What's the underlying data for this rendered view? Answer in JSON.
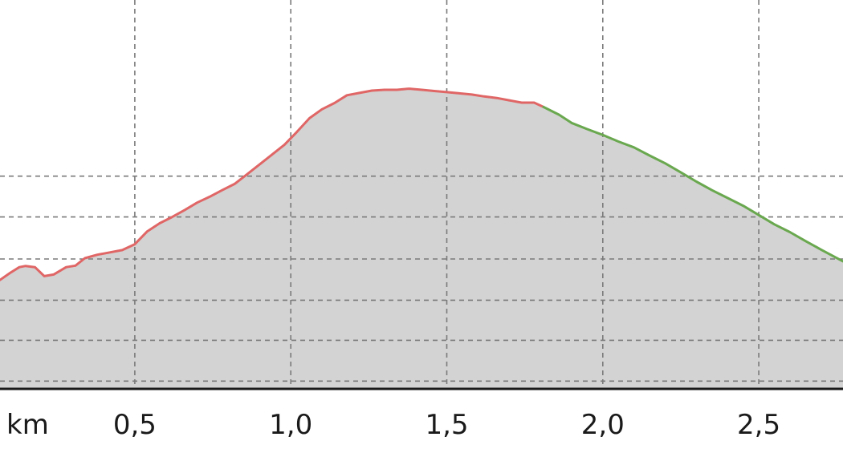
{
  "chart_data": {
    "type": "area",
    "xlabel": "km",
    "x_ticks": [
      {
        "value": 0.5,
        "label": "0,5"
      },
      {
        "value": 1.0,
        "label": "1,0"
      },
      {
        "value": 1.5,
        "label": "1,5"
      },
      {
        "value": 2.0,
        "label": "2,0"
      },
      {
        "value": 2.5,
        "label": "2,5"
      }
    ],
    "xlim": [
      0.068,
      2.77
    ],
    "ylim": [
      0,
      100
    ],
    "y_gridlines": [
      2,
      12.5,
      22.8,
      33.4,
      44.2,
      54.7
    ],
    "grid": true,
    "fill_color": "#d3d3d3",
    "series": [
      {
        "color": "#e06666",
        "points": [
          [
            0.068,
            28.0
          ],
          [
            0.1,
            29.8
          ],
          [
            0.13,
            31.3
          ],
          [
            0.15,
            31.6
          ],
          [
            0.18,
            31.3
          ],
          [
            0.21,
            29.0
          ],
          [
            0.24,
            29.4
          ],
          [
            0.28,
            31.3
          ],
          [
            0.31,
            31.7
          ],
          [
            0.34,
            33.6
          ],
          [
            0.38,
            34.5
          ],
          [
            0.42,
            35.1
          ],
          [
            0.46,
            35.7
          ],
          [
            0.5,
            37.2
          ],
          [
            0.54,
            40.5
          ],
          [
            0.58,
            42.6
          ],
          [
            0.62,
            44.2
          ],
          [
            0.66,
            46.0
          ],
          [
            0.7,
            47.9
          ],
          [
            0.74,
            49.4
          ],
          [
            0.78,
            51.1
          ],
          [
            0.82,
            52.7
          ],
          [
            0.86,
            55.2
          ],
          [
            0.92,
            59.0
          ],
          [
            0.98,
            62.8
          ],
          [
            1.02,
            66.1
          ],
          [
            1.06,
            69.6
          ],
          [
            1.1,
            71.9
          ],
          [
            1.14,
            73.5
          ],
          [
            1.18,
            75.5
          ],
          [
            1.22,
            76.1
          ],
          [
            1.26,
            76.7
          ],
          [
            1.3,
            76.9
          ],
          [
            1.34,
            76.9
          ],
          [
            1.38,
            77.2
          ],
          [
            1.42,
            76.9
          ],
          [
            1.46,
            76.6
          ],
          [
            1.5,
            76.3
          ],
          [
            1.54,
            76.0
          ],
          [
            1.58,
            75.7
          ],
          [
            1.62,
            75.2
          ],
          [
            1.66,
            74.8
          ],
          [
            1.7,
            74.2
          ],
          [
            1.74,
            73.6
          ],
          [
            1.78,
            73.6
          ],
          [
            1.81,
            72.5
          ]
        ]
      },
      {
        "color": "#6aa84f",
        "points": [
          [
            1.81,
            72.5
          ],
          [
            1.86,
            70.5
          ],
          [
            1.9,
            68.4
          ],
          [
            1.95,
            66.8
          ],
          [
            2.0,
            65.3
          ],
          [
            2.05,
            63.6
          ],
          [
            2.1,
            62.1
          ],
          [
            2.15,
            60.0
          ],
          [
            2.2,
            58.0
          ],
          [
            2.25,
            55.7
          ],
          [
            2.3,
            53.3
          ],
          [
            2.35,
            51.1
          ],
          [
            2.4,
            49.1
          ],
          [
            2.45,
            47.1
          ],
          [
            2.5,
            44.7
          ],
          [
            2.55,
            42.3
          ],
          [
            2.6,
            40.3
          ],
          [
            2.65,
            38.0
          ],
          [
            2.7,
            35.8
          ],
          [
            2.77,
            32.8
          ]
        ]
      }
    ]
  }
}
